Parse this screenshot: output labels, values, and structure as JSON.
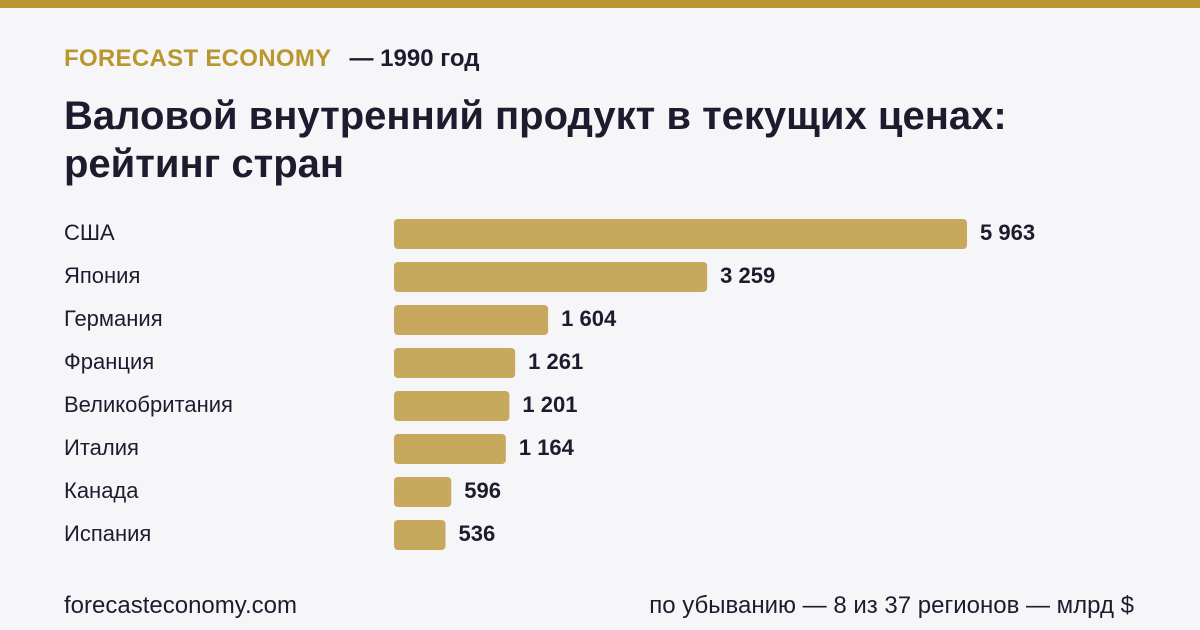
{
  "header": {
    "brand": "FORECAST ECONOMY",
    "year": "— 1990 год",
    "title": "Валовой внутренний продукт в текущих ценах: рейтинг стран"
  },
  "footer": {
    "site": "forecasteconomy.com",
    "note": "по убыванию — 8 из 37 регионов — млрд $"
  },
  "colors": {
    "accent": "#b8972e",
    "bar": "#c6a95c",
    "text": "#1c1c2e",
    "background": "#f6f6f9"
  },
  "chart_data": {
    "type": "bar",
    "orientation": "horizontal",
    "categories": [
      "США",
      "Япония",
      "Германия",
      "Франция",
      "Великобритания",
      "Италия",
      "Канада",
      "Испания"
    ],
    "values": [
      5963,
      3259,
      1604,
      1261,
      1201,
      1164,
      596,
      536
    ],
    "value_labels": [
      "5 963",
      "3 259",
      "1 604",
      "1 261",
      "1 201",
      "1 164",
      "596",
      "536"
    ],
    "title": "Валовой внутренний продукт в текущих ценах: рейтинг стран",
    "unit": "млрд $",
    "grid": false,
    "legend": "none"
  }
}
